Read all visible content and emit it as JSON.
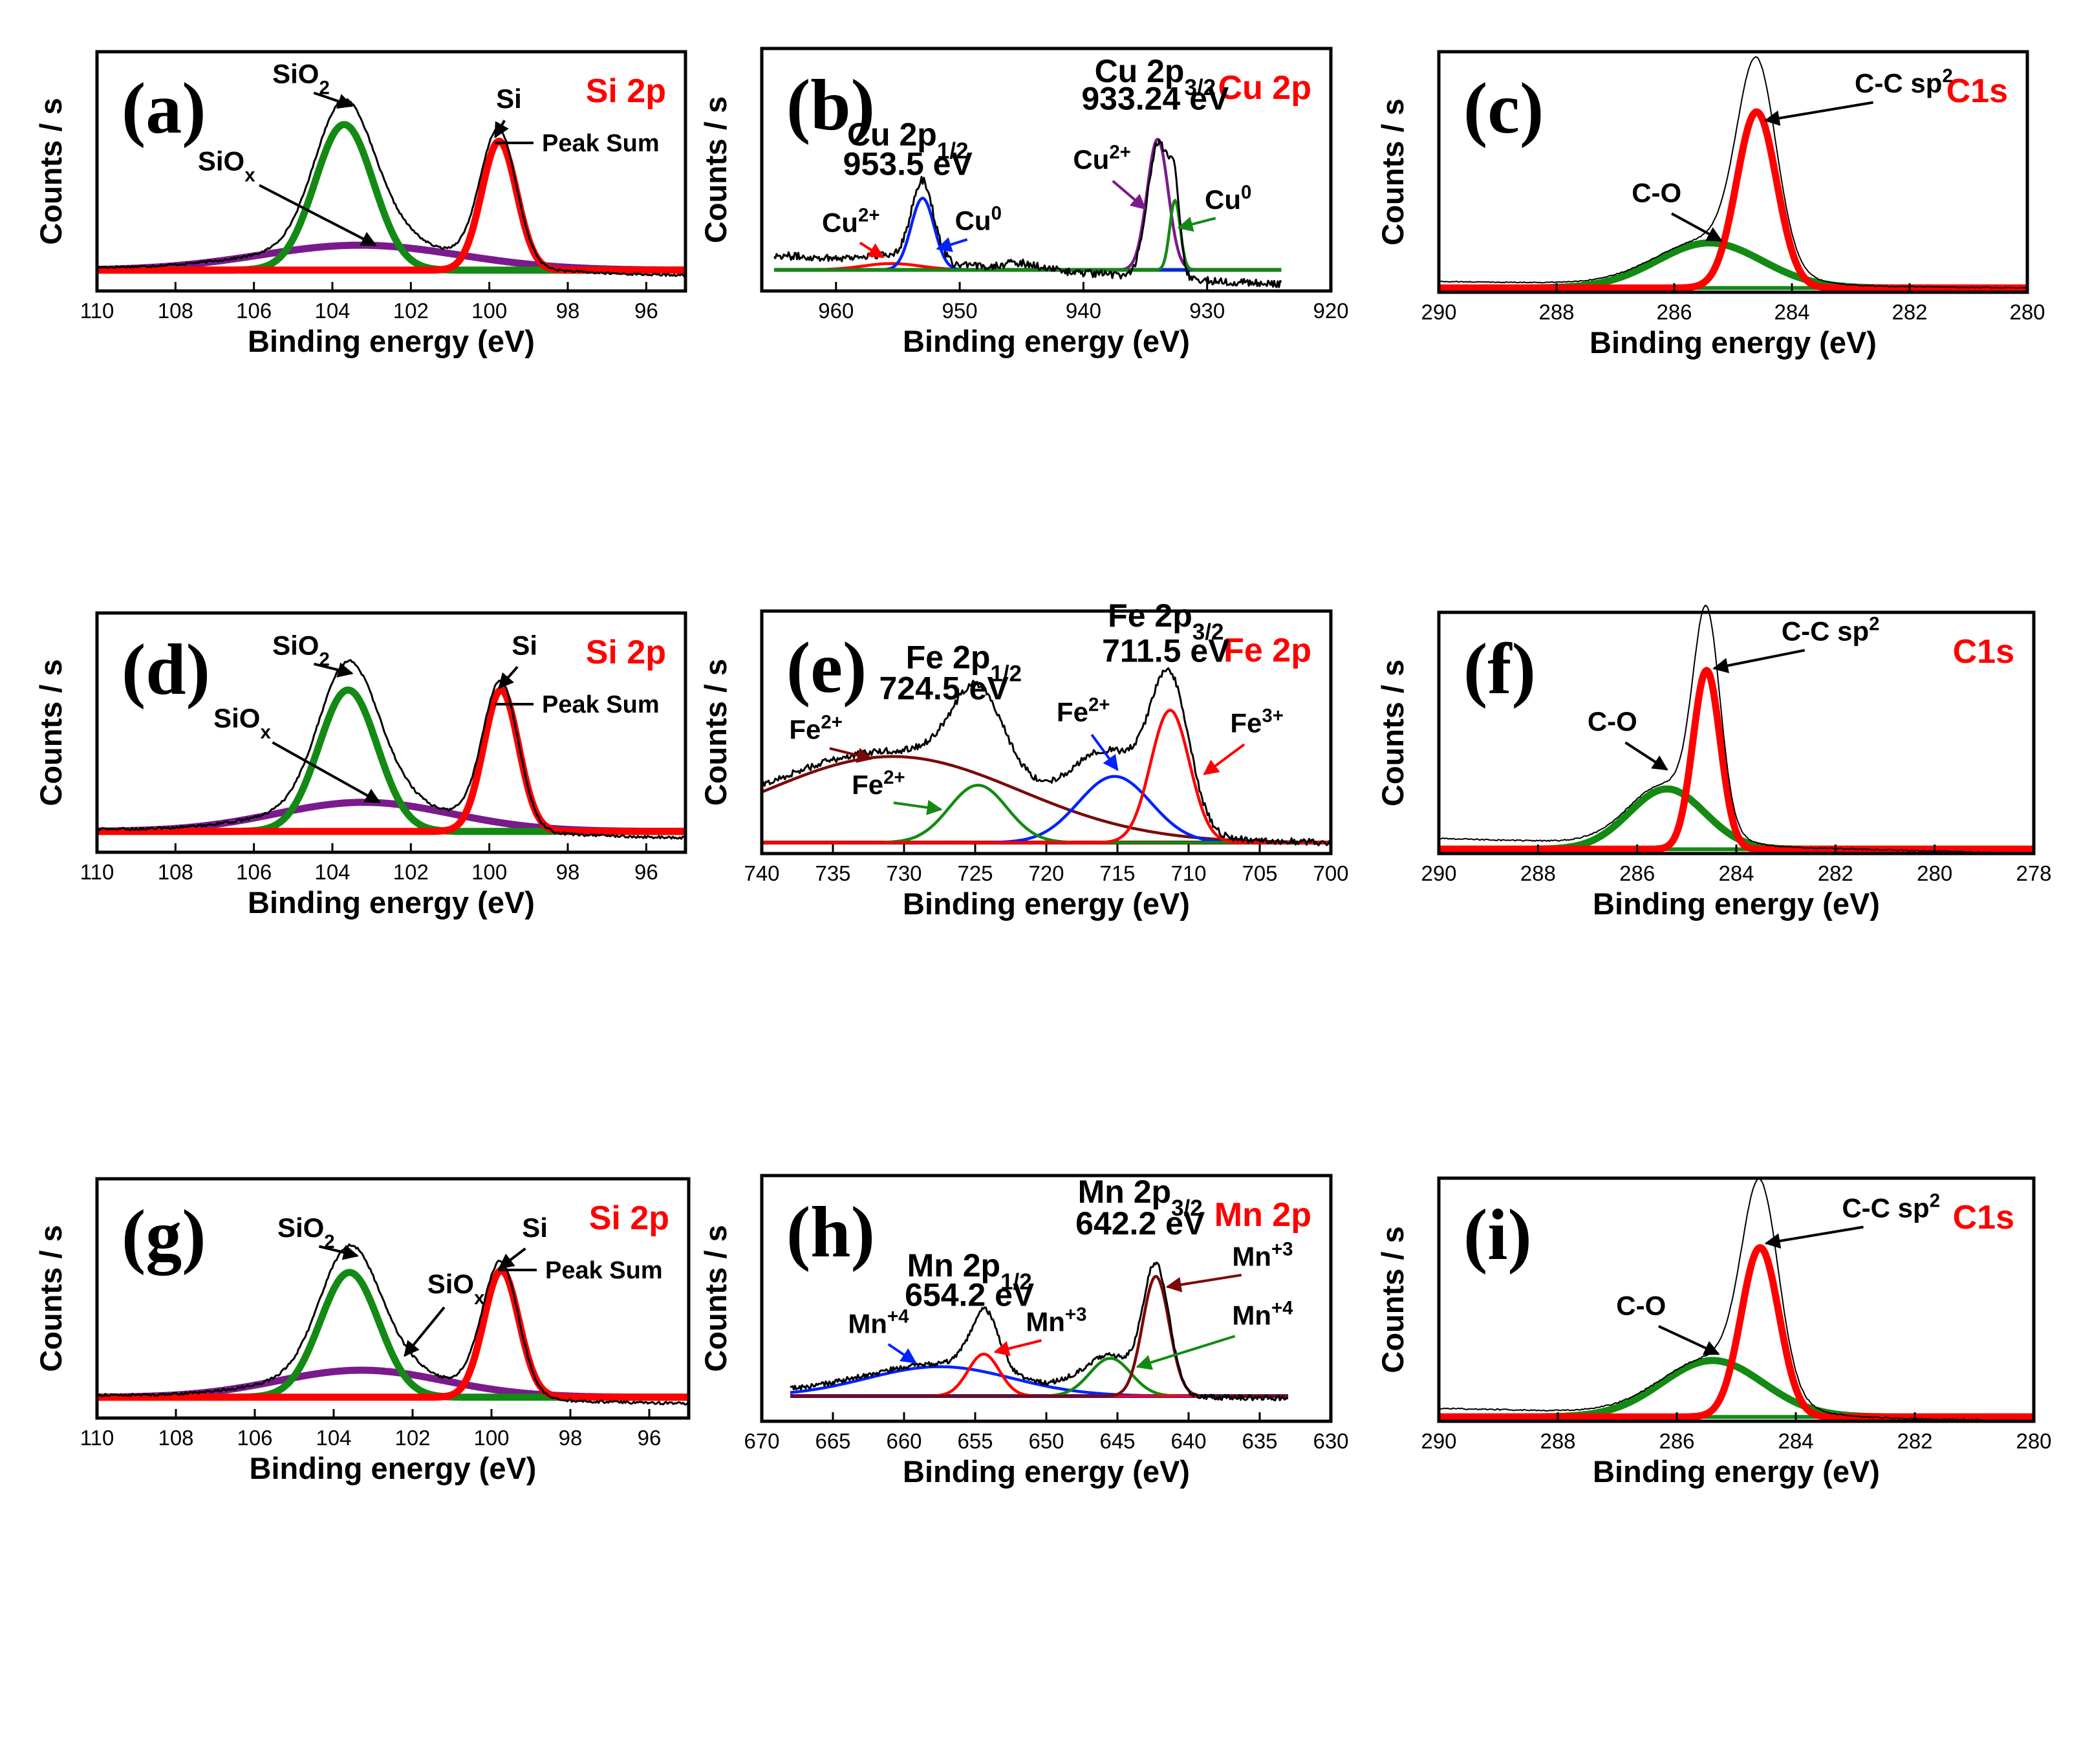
{
  "figure": {
    "panel_count": 9
  },
  "colors": {
    "peak_sum": "#000000",
    "red": "#ff0000",
    "green": "#138a13",
    "purple": "#7b1a8c",
    "blue": "#0022ff",
    "darkred": "#7a0a0a",
    "title": "#ff0000"
  },
  "chart_data": [
    {
      "id": "a",
      "type": "line",
      "label": "(a)",
      "title": "Si 2p",
      "xlabel": "Binding energy (eV)",
      "ylabel": "Counts / s",
      "xlim": [
        110,
        95
      ],
      "ylim": [
        -0.1,
        1.05
      ],
      "xticks": [
        110,
        108,
        106,
        104,
        102,
        100,
        98,
        96
      ],
      "legend": {
        "label": "Peak Sum",
        "position": "top-right"
      },
      "baseline": 0,
      "peaks": [
        {
          "name": "SiO2",
          "center": 103.7,
          "fwhm": 1.75,
          "height": 0.7,
          "color": "green"
        },
        {
          "name": "Si",
          "center": 99.75,
          "fwhm": 1.05,
          "height": 0.62,
          "color": "red"
        },
        {
          "name": "SiOx",
          "center": 103.3,
          "fwhm": 6.0,
          "height": 0.12,
          "color": "purple"
        }
      ],
      "envelope": {
        "extra": [
          [
            100.3,
            1.2,
            0.05
          ],
          [
            102.3,
            1.6,
            0.06
          ]
        ],
        "noise": 0.005,
        "left_offset": 0.01,
        "right_offset": -0.025,
        "width": 3
      },
      "annotations": [
        {
          "text": "SiO",
          "sub": "2",
          "x": 104.8,
          "y": 0.9,
          "ax": 103.5,
          "ay": 0.79
        },
        {
          "text": "Si",
          "x": 99.5,
          "y": 0.78,
          "ax": 99.85,
          "ay": 0.64
        },
        {
          "text": "SiO",
          "sub": "x",
          "x": 106.7,
          "y": 0.48,
          "ax": 102.9,
          "ay": 0.12
        }
      ]
    },
    {
      "id": "b",
      "type": "line",
      "label": "(b)",
      "title": "Cu 2p",
      "xlabel": "Binding energy (eV)",
      "ylabel": "Counts / s",
      "xlim": [
        966,
        920
      ],
      "ylim": [
        -0.1,
        1.05
      ],
      "xticks": [
        960,
        950,
        940,
        930,
        920
      ],
      "baseline": 0,
      "baseline_color": "green",
      "data_range": [
        965,
        924
      ],
      "peaks": [
        {
          "name": "Cu2+ (2p3/2)",
          "center": 934.0,
          "fwhm": 2.0,
          "height": 0.62,
          "color": "purple"
        },
        {
          "name": "Cu0 (2p3/2)",
          "center": 932.6,
          "fwhm": 1.0,
          "height": 0.33,
          "color": "green"
        },
        {
          "name": "Cu0 (2p1/2)",
          "center": 953.0,
          "fwhm": 2.2,
          "height": 0.34,
          "color": "blue"
        },
        {
          "name": "Cu2+ (2p1/2)",
          "center": 955.5,
          "fwhm": 5.5,
          "height": 0.03,
          "color": "red"
        }
      ],
      "envelope": {
        "extra": [
          [
            933.2,
            1.1,
            0.06
          ],
          [
            953.0,
            1.3,
            0.04
          ],
          [
            945,
            4.0,
            0.03
          ]
        ],
        "noise": 0.018,
        "left_offset": 0.07,
        "right_offset": -0.07,
        "width": 3
      },
      "annotations": [
        {
          "text": "Cu 2p",
          "sub": "1/2",
          "x": 954.2,
          "y": 0.59,
          "big": true
        },
        {
          "text": "953.5 eV",
          "x": 954.2,
          "y": 0.45,
          "big": true
        },
        {
          "text": "Cu 2p",
          "sub": "3/2",
          "x": 934.2,
          "y": 0.89,
          "big": true
        },
        {
          "text": "933.24 eV",
          "x": 934.2,
          "y": 0.76,
          "big": true
        },
        {
          "text": "Cu",
          "sup": "2+",
          "x": 958.8,
          "y": 0.18,
          "ax": 956.2,
          "ay": 0.06,
          "arrow_color": "red"
        },
        {
          "text": "Cu",
          "sup": "0",
          "x": 948.5,
          "y": 0.19,
          "ax": 951.8,
          "ay": 0.1,
          "arrow_color": "blue"
        },
        {
          "text": "Cu",
          "sup": "2+",
          "x": 938.5,
          "y": 0.48,
          "ax": 935.0,
          "ay": 0.29,
          "arrow_color": "purple"
        },
        {
          "text": "Cu",
          "sup": "0",
          "x": 928.3,
          "y": 0.29,
          "ax": 932.3,
          "ay": 0.2,
          "arrow_color": "green"
        }
      ]
    },
    {
      "id": "c",
      "type": "line",
      "label": "(c)",
      "title": "C1s",
      "xlabel": "Binding energy (eV)",
      "ylabel": "Counts / s",
      "xlim": [
        290,
        280
      ],
      "ylim": [
        -0.02,
        1.1
      ],
      "xticks": [
        290,
        288,
        286,
        284,
        282,
        280
      ],
      "baseline": 0,
      "peaks": [
        {
          "name": "C-C sp2",
          "center": 284.6,
          "fwhm": 0.8,
          "height": 0.82,
          "color": "red"
        },
        {
          "name": "C-O",
          "center": 285.4,
          "fwhm": 2.1,
          "height": 0.21,
          "color": "green"
        }
      ],
      "envelope": {
        "extra": [
          [
            284.6,
            0.65,
            0.1
          ]
        ],
        "noise": 0.002,
        "left_offset": 0.03,
        "right_offset": 0.0,
        "width": 2
      },
      "annotations": [
        {
          "text": "C-C sp",
          "sup": "2",
          "x": 282.1,
          "y": 0.91,
          "ax": 284.45,
          "ay": 0.78
        },
        {
          "text": "C-O",
          "x": 286.3,
          "y": 0.4,
          "ax": 285.2,
          "ay": 0.22
        }
      ]
    },
    {
      "id": "d",
      "type": "line",
      "label": "(d)",
      "title": "Si 2p",
      "xlabel": "Binding energy (eV)",
      "ylabel": "Counts / s",
      "xlim": [
        110,
        95
      ],
      "ylim": [
        -0.1,
        1.05
      ],
      "xticks": [
        110,
        108,
        106,
        104,
        102,
        100,
        98,
        96
      ],
      "legend": {
        "label": "Peak Sum",
        "position": "top-right"
      },
      "baseline": 0,
      "peaks": [
        {
          "name": "SiO2",
          "center": 103.6,
          "fwhm": 1.75,
          "height": 0.68,
          "color": "green"
        },
        {
          "name": "Si",
          "center": 99.7,
          "fwhm": 1.05,
          "height": 0.68,
          "color": "red"
        },
        {
          "name": "SiOx",
          "center": 103.2,
          "fwhm": 5.3,
          "height": 0.14,
          "color": "purple"
        }
      ],
      "envelope": {
        "extra": [
          [
            100.3,
            1.2,
            0.04
          ],
          [
            102.3,
            1.6,
            0.05
          ]
        ],
        "noise": 0.006,
        "left_offset": 0.01,
        "right_offset": -0.03,
        "width": 3
      },
      "annotations": [
        {
          "text": "SiO",
          "sub": "2",
          "x": 104.8,
          "y": 0.85,
          "ax": 103.5,
          "ay": 0.76
        },
        {
          "text": "Si",
          "x": 99.1,
          "y": 0.85,
          "ax": 99.75,
          "ay": 0.69
        },
        {
          "text": "SiO",
          "sub": "x",
          "x": 106.3,
          "y": 0.5,
          "ax": 102.8,
          "ay": 0.14
        }
      ]
    },
    {
      "id": "e",
      "type": "line",
      "label": "(e)",
      "title": "Fe 2p",
      "xlabel": "Binding energy (eV)",
      "ylabel": "Counts / s",
      "xlim": [
        740,
        700
      ],
      "ylim": [
        -0.05,
        1.05
      ],
      "xticks": [
        740,
        735,
        730,
        725,
        720,
        715,
        710,
        705,
        700
      ],
      "baseline": 0,
      "peaks": [
        {
          "name": "Fe3+ (2p3/2)",
          "center": 711.3,
          "fwhm": 3.2,
          "height": 0.6,
          "color": "red"
        },
        {
          "name": "Fe2+ (2p3/2)",
          "center": 715.2,
          "fwhm": 6.0,
          "height": 0.3,
          "color": "blue"
        },
        {
          "name": "Fe2+ satellite",
          "center": 724.8,
          "fwhm": 4.8,
          "height": 0.26,
          "color": "green"
        },
        {
          "name": "Fe2+ (2p1/2)",
          "center": 730.8,
          "fwhm": 21.0,
          "height": 0.39,
          "color": "darkred"
        }
      ],
      "envelope": {
        "extra": [
          [
            724.8,
            3.5,
            0.13
          ],
          [
            711.3,
            3.0,
            0.04
          ],
          [
            717.5,
            4.0,
            0.03
          ]
        ],
        "noise": 0.015,
        "left_offset": 0.03,
        "right_offset": 0.0,
        "width": 3
      },
      "annotations": [
        {
          "text": "Fe 2p",
          "sub": "1/2",
          "x": 725.8,
          "y": 0.79,
          "big": true
        },
        {
          "text": "724.5 eV",
          "x": 727.2,
          "y": 0.65,
          "big": true
        },
        {
          "text": "Fe 2p",
          "sub": "3/2",
          "x": 711.6,
          "y": 0.98,
          "big": true
        },
        {
          "text": "711.5 eV",
          "x": 711.6,
          "y": 0.82,
          "big": true
        },
        {
          "text": "Fe",
          "sup": "2+",
          "x": 736.2,
          "y": 0.47,
          "ax": 732.3,
          "ay": 0.38,
          "arrow_color": "darkred"
        },
        {
          "text": "Fe",
          "sup": "2+",
          "x": 731.8,
          "y": 0.22,
          "ax": 727.4,
          "ay": 0.15,
          "arrow_color": "green"
        },
        {
          "text": "Fe",
          "sup": "2+",
          "x": 717.4,
          "y": 0.55,
          "ax": 715.0,
          "ay": 0.33,
          "arrow_color": "blue"
        },
        {
          "text": "Fe",
          "sup": "3+",
          "x": 705.2,
          "y": 0.5,
          "ax": 708.9,
          "ay": 0.31,
          "arrow_color": "red"
        }
      ]
    },
    {
      "id": "f",
      "type": "line",
      "label": "(f)",
      "title": "C1s",
      "xlabel": "Binding energy (eV)",
      "ylabel": "Counts / s",
      "xlim": [
        290,
        278
      ],
      "ylim": [
        -0.02,
        1.1
      ],
      "xticks": [
        290,
        288,
        286,
        284,
        282,
        280,
        278
      ],
      "baseline": 0,
      "peaks": [
        {
          "name": "C-C sp2",
          "center": 284.6,
          "fwhm": 0.65,
          "height": 0.83,
          "color": "red"
        },
        {
          "name": "C-O",
          "center": 285.4,
          "fwhm": 1.8,
          "height": 0.28,
          "color": "green"
        }
      ],
      "envelope": {
        "extra": [
          [
            284.6,
            0.55,
            0.12
          ]
        ],
        "noise": 0.003,
        "left_offset": 0.05,
        "right_offset": -0.02,
        "width": 2
      },
      "annotations": [
        {
          "text": "C-C sp",
          "sup": "2",
          "x": 282.1,
          "y": 0.97,
          "ax": 284.45,
          "ay": 0.84
        },
        {
          "text": "C-O",
          "x": 286.5,
          "y": 0.55,
          "ax": 285.4,
          "ay": 0.37
        }
      ]
    },
    {
      "id": "g",
      "type": "line",
      "label": "(g)",
      "title": "Si 2p",
      "xlabel": "Binding energy (eV)",
      "ylabel": "Counts / s",
      "xlim": [
        110,
        95
      ],
      "ylim": [
        -0.1,
        1.05
      ],
      "xticks": [
        110,
        108,
        106,
        104,
        102,
        100,
        98,
        96
      ],
      "legend": {
        "label": "Peak Sum",
        "position": "top-right"
      },
      "baseline": 0,
      "peaks": [
        {
          "name": "SiO2",
          "center": 103.6,
          "fwhm": 1.75,
          "height": 0.6,
          "color": "green"
        },
        {
          "name": "Si",
          "center": 99.75,
          "fwhm": 1.05,
          "height": 0.61,
          "color": "red"
        },
        {
          "name": "SiOx",
          "center": 103.3,
          "fwhm": 5.0,
          "height": 0.13,
          "color": "purple"
        }
      ],
      "envelope": {
        "extra": [
          [
            100.3,
            1.2,
            0.05
          ],
          [
            102.3,
            1.6,
            0.05
          ]
        ],
        "noise": 0.006,
        "left_offset": 0.01,
        "right_offset": -0.03,
        "width": 3
      },
      "annotations": [
        {
          "text": "SiO",
          "sub": "2",
          "x": 104.7,
          "y": 0.77,
          "ax": 103.4,
          "ay": 0.68
        },
        {
          "text": "Si",
          "x": 98.9,
          "y": 0.77,
          "ax": 99.8,
          "ay": 0.62
        },
        {
          "text": "SiO",
          "sub": "x",
          "x": 100.9,
          "y": 0.5,
          "ax": 102.2,
          "ay": 0.2
        }
      ]
    },
    {
      "id": "h",
      "type": "line",
      "label": "(h)",
      "title": "Mn 2p",
      "xlabel": "Binding energy (eV)",
      "ylabel": "Counts / s",
      "xlim": [
        670,
        630
      ],
      "ylim": [
        -0.12,
        1.05
      ],
      "xticks": [
        670,
        665,
        660,
        655,
        650,
        645,
        640,
        635,
        630
      ],
      "baseline": 0,
      "data_range": [
        668,
        633
      ],
      "peaks": [
        {
          "name": "Mn+3 (2p3/2)",
          "center": 642.3,
          "fwhm": 2.2,
          "height": 0.57,
          "color": "darkred"
        },
        {
          "name": "Mn+4 (2p3/2)",
          "center": 645.5,
          "fwhm": 3.4,
          "height": 0.18,
          "color": "green"
        },
        {
          "name": "Mn+3 (2p1/2)",
          "center": 654.4,
          "fwhm": 2.6,
          "height": 0.2,
          "color": "red"
        },
        {
          "name": "Mn+4 (2p1/2)",
          "center": 657.5,
          "fwhm": 12.0,
          "height": 0.14,
          "color": "blue"
        }
      ],
      "envelope": {
        "extra": [
          [
            654.2,
            1.8,
            0.09
          ],
          [
            648,
            3.0,
            0.04
          ],
          [
            642.3,
            2.2,
            0.05
          ]
        ],
        "noise": 0.012,
        "left_offset": 0.02,
        "right_offset": -0.01,
        "width": 3
      },
      "annotations": [
        {
          "text": "Mn 2p",
          "sub": "1/2",
          "x": 655.4,
          "y": 0.57,
          "big": true
        },
        {
          "text": "654.2 eV",
          "x": 655.4,
          "y": 0.43,
          "big": true
        },
        {
          "text": "Mn 2p",
          "sub": "3/2",
          "x": 643.4,
          "y": 0.92,
          "big": true
        },
        {
          "text": "642.2 eV",
          "x": 643.4,
          "y": 0.77,
          "big": true
        },
        {
          "text": "Mn",
          "sup": "+4",
          "x": 661.8,
          "y": 0.3,
          "ax": 659.2,
          "ay": 0.16,
          "arrow_color": "blue"
        },
        {
          "text": "Mn",
          "sup": "+3",
          "x": 649.3,
          "y": 0.31,
          "ax": 653.6,
          "ay": 0.21,
          "arrow_color": "red"
        },
        {
          "text": "Mn",
          "sup": "+3",
          "x": 634.8,
          "y": 0.62,
          "ax": 641.5,
          "ay": 0.52,
          "arrow_color": "darkred"
        },
        {
          "text": "Mn",
          "sup": "+4",
          "x": 634.8,
          "y": 0.34,
          "ax": 643.6,
          "ay": 0.14,
          "arrow_color": "green"
        }
      ]
    },
    {
      "id": "i",
      "type": "line",
      "label": "(i)",
      "title": "C1s",
      "xlabel": "Binding energy (eV)",
      "ylabel": "Counts / s",
      "xlim": [
        290,
        280
      ],
      "ylim": [
        -0.02,
        1.1
      ],
      "xticks": [
        290,
        288,
        286,
        284,
        282,
        280
      ],
      "baseline": 0,
      "peaks": [
        {
          "name": "C-C sp2",
          "center": 284.6,
          "fwhm": 0.75,
          "height": 0.78,
          "color": "red"
        },
        {
          "name": "C-O",
          "center": 285.4,
          "fwhm": 2.0,
          "height": 0.26,
          "color": "green"
        }
      ],
      "envelope": {
        "extra": [
          [
            284.6,
            0.6,
            0.14
          ]
        ],
        "noise": 0.003,
        "left_offset": 0.04,
        "right_offset": -0.02,
        "width": 2
      },
      "annotations": [
        {
          "text": "C-C sp",
          "sup": "2",
          "x": 282.4,
          "y": 0.92,
          "ax": 284.5,
          "ay": 0.8
        },
        {
          "text": "C-O",
          "x": 286.6,
          "y": 0.47,
          "ax": 285.3,
          "ay": 0.29
        }
      ]
    }
  ]
}
